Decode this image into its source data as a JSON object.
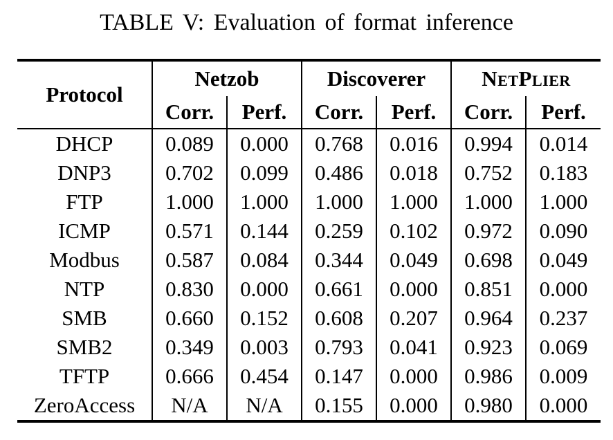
{
  "title": "TABLE V: Evaluation of format inference",
  "table": {
    "protocol_header": "Protocol",
    "groups": [
      {
        "name": "Netzob"
      },
      {
        "name": "Discoverer"
      },
      {
        "name": "NetPlier"
      }
    ],
    "subheader": {
      "corr": "Corr.",
      "perf": "Perf."
    },
    "rows": [
      {
        "protocol": "DHCP",
        "values": [
          "0.089",
          "0.000",
          "0.768",
          "0.016",
          "0.994",
          "0.014"
        ]
      },
      {
        "protocol": "DNP3",
        "values": [
          "0.702",
          "0.099",
          "0.486",
          "0.018",
          "0.752",
          "0.183"
        ]
      },
      {
        "protocol": "FTP",
        "values": [
          "1.000",
          "1.000",
          "1.000",
          "1.000",
          "1.000",
          "1.000"
        ]
      },
      {
        "protocol": "ICMP",
        "values": [
          "0.571",
          "0.144",
          "0.259",
          "0.102",
          "0.972",
          "0.090"
        ]
      },
      {
        "protocol": "Modbus",
        "values": [
          "0.587",
          "0.084",
          "0.344",
          "0.049",
          "0.698",
          "0.049"
        ]
      },
      {
        "protocol": "NTP",
        "values": [
          "0.830",
          "0.000",
          "0.661",
          "0.000",
          "0.851",
          "0.000"
        ]
      },
      {
        "protocol": "SMB",
        "values": [
          "0.660",
          "0.152",
          "0.608",
          "0.207",
          "0.964",
          "0.237"
        ]
      },
      {
        "protocol": "SMB2",
        "values": [
          "0.349",
          "0.003",
          "0.793",
          "0.041",
          "0.923",
          "0.069"
        ]
      },
      {
        "protocol": "TFTP",
        "values": [
          "0.666",
          "0.454",
          "0.147",
          "0.000",
          "0.986",
          "0.009"
        ]
      },
      {
        "protocol": "ZeroAccess",
        "values": [
          "N/A",
          "N/A",
          "0.155",
          "0.000",
          "0.980",
          "0.000"
        ]
      }
    ]
  },
  "colors": {
    "text": "#000000",
    "background": "#ffffff",
    "rule": "#000000"
  }
}
